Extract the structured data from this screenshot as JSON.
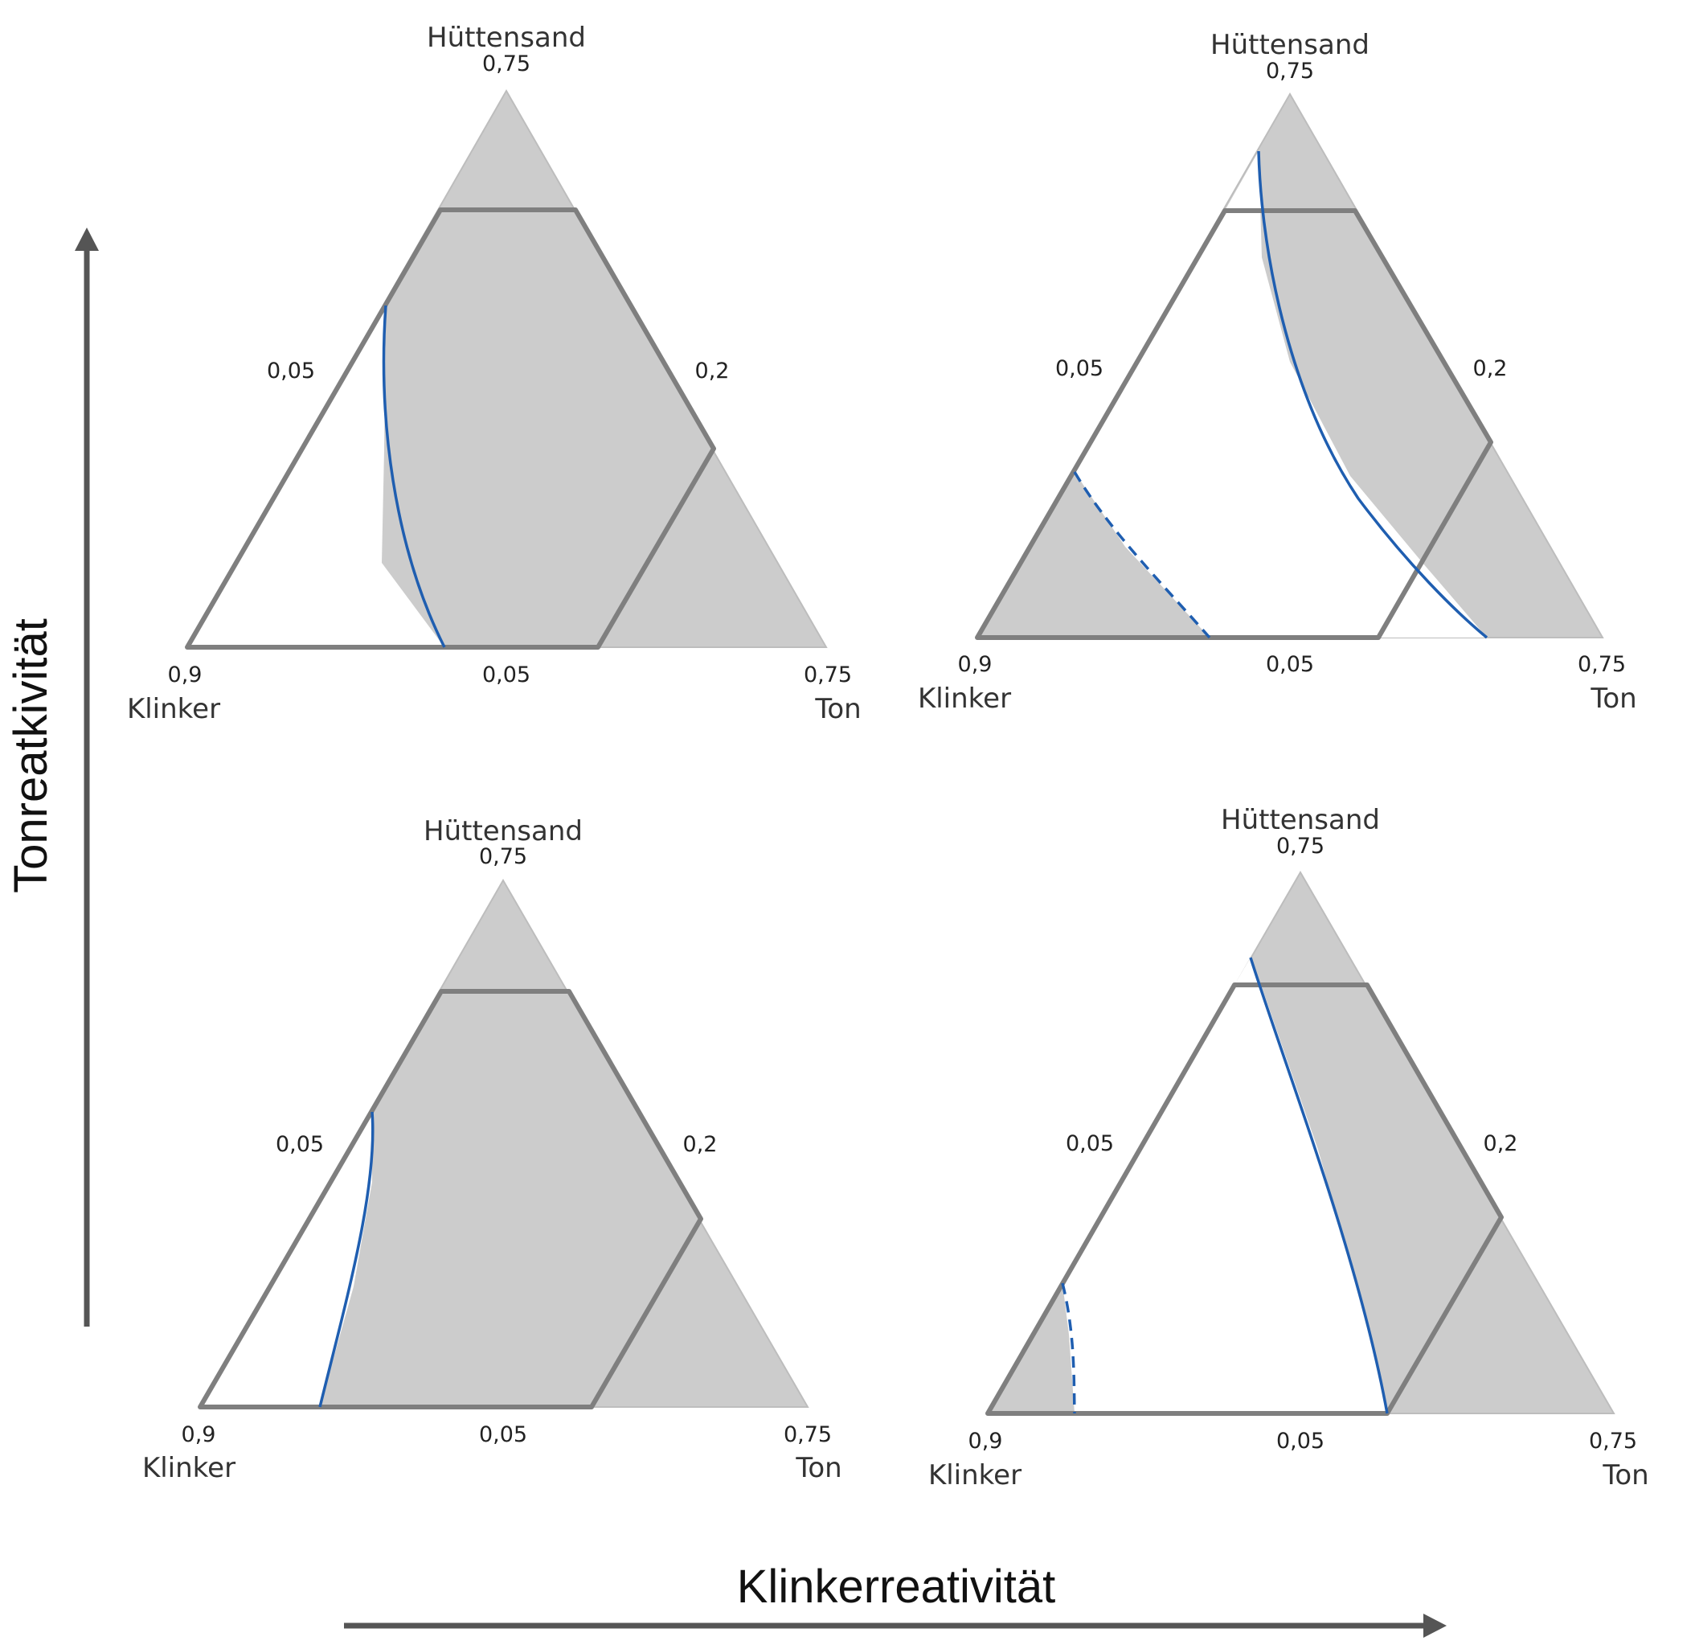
{
  "axes": {
    "x_title": "Klinkerreativität",
    "y_title": "Tonreatkivität"
  },
  "colors": {
    "region_fill": "#cccccc",
    "boundary": "#7f7f7f",
    "outer_triangle": "#bdbdbd",
    "curve": "#1f5eb0",
    "arrow": "#555555"
  },
  "panels": [
    {
      "vertices": {
        "top": "Hüttensand",
        "left": "Klinker",
        "right": "Ton"
      },
      "ticks": {
        "top": "0,75",
        "left_edge": "0,05",
        "right_edge": "0,2",
        "bottom_left": "0,9",
        "bottom_mid": "0,05",
        "bottom_right": "0,75"
      }
    },
    {
      "vertices": {
        "top": "Hüttensand",
        "left": "Klinker",
        "right": "Ton"
      },
      "ticks": {
        "top": "0,75",
        "left_edge": "0,05",
        "right_edge": "0,2",
        "bottom_left": "0,9",
        "bottom_mid": "0,05",
        "bottom_right": "0,75"
      }
    },
    {
      "vertices": {
        "top": "Hüttensand",
        "left": "Klinker",
        "right": "Ton"
      },
      "ticks": {
        "top": "0,75",
        "left_edge": "0,05",
        "right_edge": "0,2",
        "bottom_left": "0,9",
        "bottom_mid": "0,05",
        "bottom_right": "0,75"
      }
    },
    {
      "vertices": {
        "top": "Hüttensand",
        "left": "Klinker",
        "right": "Ton"
      },
      "ticks": {
        "top": "0,75",
        "left_edge": "0,05",
        "right_edge": "0,2",
        "bottom_left": "0,9",
        "bottom_mid": "0,05",
        "bottom_right": "0,75"
      }
    }
  ]
}
